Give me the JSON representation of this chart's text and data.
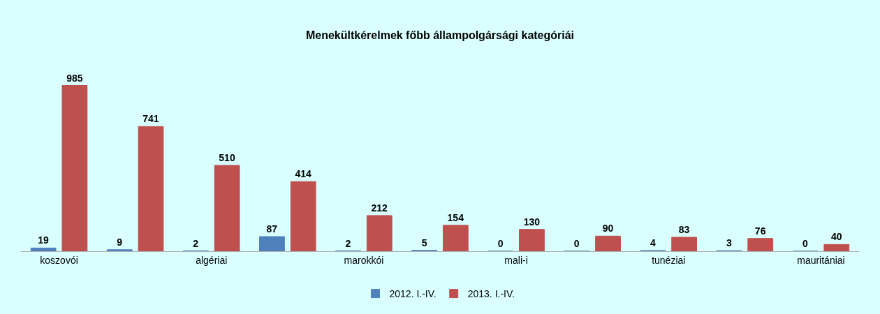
{
  "chart_data": {
    "type": "bar",
    "title": "Menekültkérelmek főbb állampolgársági kategóriái",
    "categories": [
      "koszovói",
      null,
      "algériai",
      null,
      "marokkói",
      null,
      "mali-i",
      null,
      "tunéziai",
      null,
      "mauritániai"
    ],
    "series": [
      {
        "name": "2012. I.-IV.",
        "color": "#4f81bd",
        "values": [
          19,
          9,
          2,
          87,
          2,
          5,
          0,
          0,
          4,
          3,
          0
        ]
      },
      {
        "name": "2013. I.-IV.",
        "color": "#c0504d",
        "values": [
          985,
          741,
          510,
          414,
          212,
          154,
          130,
          90,
          83,
          76,
          40
        ]
      }
    ],
    "data_labels": true,
    "grid": false,
    "legend": "bottom"
  }
}
